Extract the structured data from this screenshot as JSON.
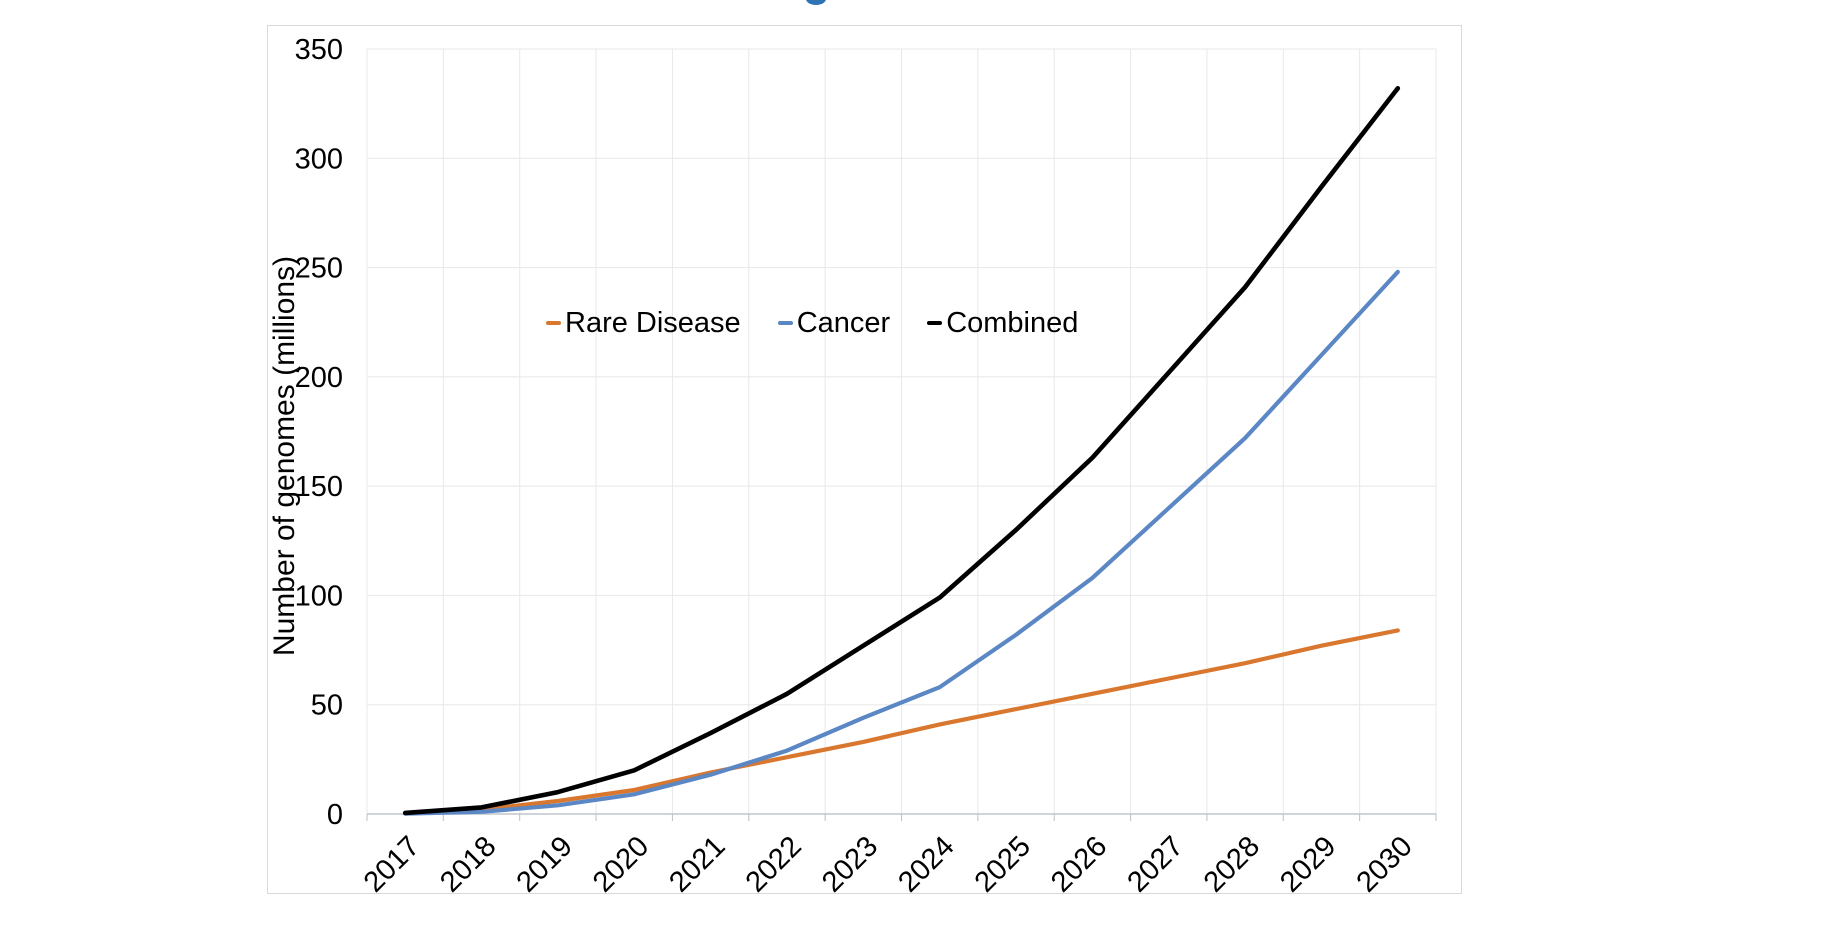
{
  "page": {
    "background_color": "#ffffff",
    "clipped_title_fragment_color": "#2E74B5"
  },
  "chart_data": {
    "type": "line",
    "title": "",
    "xlabel": "",
    "ylabel": "Number of genomes (millions)",
    "ylim": [
      0,
      350
    ],
    "ytick_interval": 50,
    "yticks": [
      "0",
      "50",
      "100",
      "150",
      "200",
      "250",
      "300",
      "350"
    ],
    "grid": true,
    "legend_position": "inside-upper-middle",
    "categories": [
      "2017",
      "2018",
      "2019",
      "2020",
      "2021",
      "2022",
      "2023",
      "2024",
      "2025",
      "2026",
      "2027",
      "2028",
      "2029",
      "2030"
    ],
    "series": [
      {
        "name": "Rare Disease",
        "color": "#D9772F",
        "values": [
          0.3,
          2,
          6,
          11,
          19,
          26,
          33,
          41,
          48,
          55,
          62,
          69,
          77,
          84
        ]
      },
      {
        "name": "Cancer",
        "color": "#5B87C5",
        "values": [
          0.2,
          1,
          4,
          9,
          18,
          29,
          44,
          58,
          82,
          108,
          140,
          172,
          210,
          248
        ]
      },
      {
        "name": "Combined",
        "color": "#000000",
        "values": [
          0.5,
          3,
          10,
          20,
          37,
          55,
          77,
          99,
          130,
          163,
          202,
          241,
          287,
          332
        ]
      }
    ],
    "style": {
      "gridline_color": "#E8E8E8",
      "axis_line_color": "#BFC5CC",
      "tick_mark_color": "#BFBFBF",
      "line_width_combined": 4.6,
      "line_width_series": 4.2
    }
  }
}
